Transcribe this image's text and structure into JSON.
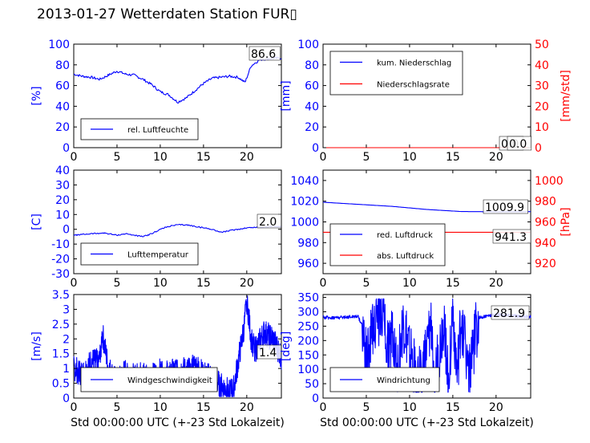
{
  "figure": {
    "title": "2013-01-27 Wetterdaten Station FUR▯"
  },
  "chart_data": [
    {
      "id": "humidity",
      "type": "line",
      "xlim": [
        0,
        24
      ],
      "xticks": [
        0,
        5,
        10,
        15,
        20
      ],
      "ylim": [
        0,
        100
      ],
      "yticks": [
        0,
        20,
        40,
        60,
        80,
        100
      ],
      "ylabel": "[%]",
      "ylabel_color": "#0000ff",
      "ytick_color": "#0000ff",
      "legend_position": "lower-left",
      "annotations": [
        "86.6"
      ],
      "series": [
        {
          "name": "rel. Luftfeuchte",
          "color": "#0000ff",
          "axis": "left",
          "style": "smooth",
          "points": [
            [
              0,
              71
            ],
            [
              1,
              69
            ],
            [
              2,
              68
            ],
            [
              3,
              66
            ],
            [
              4,
              70
            ],
            [
              5,
              74
            ],
            [
              6,
              71
            ],
            [
              7,
              70
            ],
            [
              8,
              66
            ],
            [
              9,
              61
            ],
            [
              10,
              54
            ],
            [
              11,
              51
            ],
            [
              12,
              44
            ],
            [
              13,
              48
            ],
            [
              14,
              55
            ],
            [
              15,
              62
            ],
            [
              16,
              67
            ],
            [
              17,
              68
            ],
            [
              18,
              69
            ],
            [
              19,
              68
            ],
            [
              19.8,
              63
            ],
            [
              20.5,
              79
            ],
            [
              21.5,
              85
            ],
            [
              22.5,
              86
            ],
            [
              24,
              86.6
            ]
          ]
        }
      ]
    },
    {
      "id": "precip",
      "type": "line",
      "xlim": [
        0,
        24
      ],
      "xticks": [
        0,
        5,
        10,
        15,
        20
      ],
      "ylim": [
        0,
        100
      ],
      "yticks": [
        0,
        20,
        40,
        60,
        80,
        100
      ],
      "ylabel": "[mm]",
      "ylabel_color": "#0000ff",
      "ytick_color": "#0000ff",
      "ylim_right": [
        0,
        50
      ],
      "yticks_right": [
        0,
        10,
        20,
        30,
        40,
        50
      ],
      "ylabel_right": "[mm/std]",
      "ylabel_right_color": "#ff0000",
      "legend_position": "upper-left",
      "annotations": [
        "0.0",
        "0.0"
      ],
      "series": [
        {
          "name": "kum. Niederschlag",
          "color": "#0000ff",
          "axis": "left",
          "style": "smooth",
          "points": [
            [
              0,
              0
            ],
            [
              24,
              0
            ]
          ]
        },
        {
          "name": "Niederschlagsrate",
          "color": "#ff0000",
          "axis": "right",
          "style": "smooth",
          "points": [
            [
              0,
              0
            ],
            [
              24,
              0
            ]
          ]
        }
      ]
    },
    {
      "id": "temperature",
      "type": "line",
      "xlim": [
        0,
        24
      ],
      "xticks": [
        0,
        5,
        10,
        15,
        20
      ],
      "ylim": [
        -30,
        40
      ],
      "yticks": [
        -30,
        -20,
        -10,
        0,
        10,
        20,
        30,
        40
      ],
      "ylabel": "[C]",
      "ylabel_color": "#0000ff",
      "ytick_color": "#0000ff",
      "legend_position": "lower-left",
      "annotations": [
        "2.0"
      ],
      "series": [
        {
          "name": "Lufttemperatur",
          "color": "#0000ff",
          "axis": "left",
          "style": "smooth",
          "points": [
            [
              0,
              -4
            ],
            [
              2,
              -3
            ],
            [
              3.5,
              -2.5
            ],
            [
              5,
              -4
            ],
            [
              6,
              -3
            ],
            [
              7,
              -4
            ],
            [
              8,
              -5
            ],
            [
              9,
              -3
            ],
            [
              10,
              0
            ],
            [
              11,
              2
            ],
            [
              12,
              3
            ],
            [
              13,
              3
            ],
            [
              14,
              2
            ],
            [
              15,
              1
            ],
            [
              16,
              0
            ],
            [
              17,
              -2
            ],
            [
              18,
              -1
            ],
            [
              19,
              0
            ],
            [
              20,
              1
            ],
            [
              22,
              1.6
            ],
            [
              24,
              2
            ]
          ]
        }
      ]
    },
    {
      "id": "pressure",
      "type": "line",
      "xlim": [
        0,
        24
      ],
      "xticks": [
        0,
        5,
        10,
        15,
        20
      ],
      "ylim": [
        950,
        1050
      ],
      "yticks": [
        960,
        980,
        1000,
        1020,
        1040
      ],
      "ylabel": "",
      "ytick_color": "#0000ff",
      "ylim_right": [
        910,
        1010
      ],
      "yticks_right": [
        920,
        940,
        960,
        980,
        1000
      ],
      "ylabel_right": "[hPa]",
      "ylabel_right_color": "#ff0000",
      "legend_position": "lower-left",
      "annotations": [
        "1009.9",
        "941.3"
      ],
      "series": [
        {
          "name": "red. Luftdruck",
          "color": "#0000ff",
          "axis": "left",
          "style": "smooth",
          "points": [
            [
              0,
              1019
            ],
            [
              4,
              1017
            ],
            [
              8,
              1015
            ],
            [
              12,
              1012
            ],
            [
              16,
              1010
            ],
            [
              20,
              1009.8
            ],
            [
              24,
              1009.9
            ]
          ]
        },
        {
          "name": "abs. Luftdruck",
          "color": "#ff0000",
          "axis": "right",
          "style": "smooth",
          "points": [
            [
              0,
              947
            ],
            [
              4,
              946
            ],
            [
              8,
              944.5
            ],
            [
              12,
              942.5
            ],
            [
              16,
              940.8
            ],
            [
              20,
              941
            ],
            [
              24,
              941.3
            ]
          ]
        }
      ]
    },
    {
      "id": "wind-speed",
      "type": "line",
      "xlim": [
        0,
        24
      ],
      "xticks": [
        0,
        5,
        10,
        15,
        20
      ],
      "ylim": [
        0,
        3.5
      ],
      "yticks": [
        0.0,
        0.5,
        1.0,
        1.5,
        2.0,
        2.5,
        3.0,
        3.5
      ],
      "ylabel": "[m/s]",
      "ylabel_color": "#0000ff",
      "ytick_color": "#0000ff",
      "legend_position": "lower-left",
      "annotations": [
        "1.4"
      ],
      "series": [
        {
          "name": "Windgeschwindigkeit",
          "color": "#0000ff",
          "axis": "left",
          "style": "noisy",
          "points": [
            [
              0,
              1.0
            ],
            [
              1,
              0.8
            ],
            [
              2,
              1.2
            ],
            [
              3,
              1.3
            ],
            [
              3.3,
              2.2
            ],
            [
              4,
              1.0
            ],
            [
              5,
              0.5
            ],
            [
              6,
              0.9
            ],
            [
              7,
              0.7
            ],
            [
              8,
              0.8
            ],
            [
              9,
              0.7
            ],
            [
              10,
              0.9
            ],
            [
              11,
              0.8
            ],
            [
              12,
              1.0
            ],
            [
              13,
              0.9
            ],
            [
              14,
              1.1
            ],
            [
              15,
              0.8
            ],
            [
              16,
              0.7
            ],
            [
              17,
              0.4
            ],
            [
              18,
              0.2
            ],
            [
              18.5,
              0.3
            ],
            [
              19,
              1.2
            ],
            [
              19.7,
              2.4
            ],
            [
              20,
              3.3
            ],
            [
              20.5,
              2.0
            ],
            [
              21,
              1.6
            ],
            [
              22,
              2.2
            ],
            [
              23,
              2.0
            ],
            [
              24,
              1.4
            ]
          ]
        }
      ]
    },
    {
      "id": "wind-direction",
      "type": "line",
      "xlim": [
        0,
        24
      ],
      "xticks": [
        0,
        5,
        10,
        15,
        20
      ],
      "ylim": [
        0,
        360
      ],
      "yticks": [
        0,
        50,
        100,
        150,
        200,
        250,
        300,
        350
      ],
      "ylabel": "[deg]",
      "ylabel_color": "#0000ff",
      "ytick_color": "#0000ff",
      "legend_position": "lower-left",
      "annotations": [
        "281.9"
      ],
      "series": [
        {
          "name": "Windrichtung",
          "color": "#0000ff",
          "axis": "left",
          "style": "spiky",
          "points": [
            [
              0,
              280
            ],
            [
              2,
              280
            ],
            [
              4,
              285
            ],
            [
              4.6,
              250
            ],
            [
              5,
              120
            ],
            [
              6,
              280
            ],
            [
              7,
              300
            ],
            [
              7.6,
              150
            ],
            [
              8,
              250
            ],
            [
              8.6,
              100
            ],
            [
              9.3,
              250
            ],
            [
              10,
              150
            ],
            [
              11,
              60
            ],
            [
              12,
              150
            ],
            [
              12.5,
              250
            ],
            [
              13,
              80
            ],
            [
              13.5,
              160
            ],
            [
              14,
              280
            ],
            [
              14.5,
              50
            ],
            [
              15,
              300
            ],
            [
              15.5,
              60
            ],
            [
              16,
              280
            ],
            [
              17,
              80
            ],
            [
              17.5,
              200
            ],
            [
              18,
              280
            ],
            [
              20,
              290
            ],
            [
              24,
              282
            ]
          ]
        }
      ]
    }
  ]
}
